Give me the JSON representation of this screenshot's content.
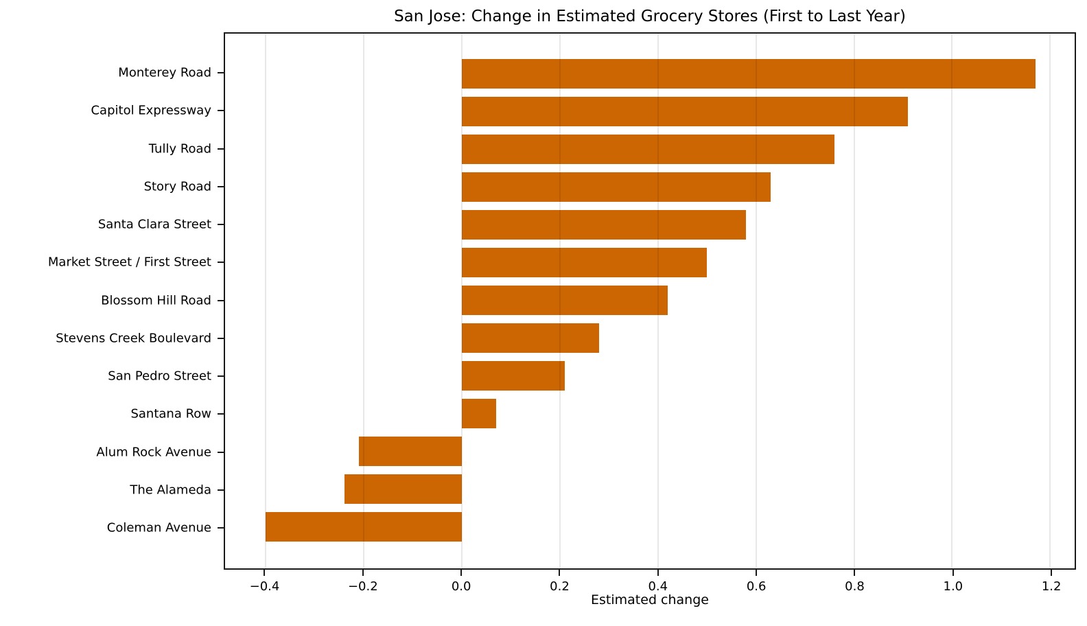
{
  "chart_data": {
    "type": "bar",
    "orientation": "horizontal",
    "title": "San Jose: Change in Estimated Grocery Stores (First to Last Year)",
    "xlabel": "Estimated change",
    "ylabel": "",
    "categories": [
      "Monterey Road",
      "Capitol Expressway",
      "Tully Road",
      "Story Road",
      "Santa Clara Street",
      "Market Street / First Street",
      "Blossom Hill Road",
      "Stevens Creek Boulevard",
      "San Pedro Street",
      "Santana Row",
      "Alum Rock Avenue",
      "The Alameda",
      "Coleman Avenue"
    ],
    "values": [
      1.17,
      0.91,
      0.76,
      0.63,
      0.58,
      0.5,
      0.42,
      0.28,
      0.21,
      0.07,
      -0.21,
      -0.24,
      -0.4
    ],
    "bar_color": "#cc6602",
    "xlim": [
      -0.483,
      1.25
    ],
    "xticks": [
      -0.4,
      -0.2,
      0.0,
      0.2,
      0.4,
      0.6,
      0.8,
      1.0,
      1.2
    ],
    "xtick_labels": [
      "−0.4",
      "−0.2",
      "0.0",
      "0.2",
      "0.4",
      "0.6",
      "0.8",
      "1.0",
      "1.2"
    ],
    "grid": "vertical",
    "grid_color": "rgba(0,0,0,0.09)",
    "spine_color": "#1a1a1a",
    "legend_position": "none"
  }
}
